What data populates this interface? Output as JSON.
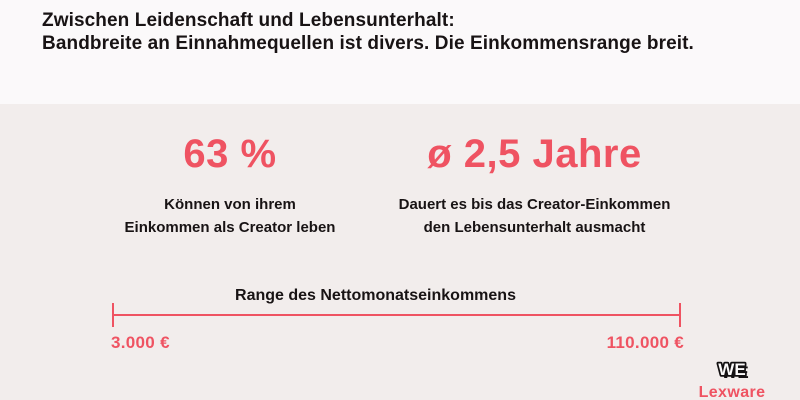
{
  "header": {
    "line1": "Zwischen Leidenschaft und Lebensunterhalt:",
    "line2": "Bandbreite an Einnahmequellen ist divers. Die Einkommensrange breit."
  },
  "stats": [
    {
      "value": "63 %",
      "caption_line1": "Können von ihrem",
      "caption_line2": "Einkommen als Creator leben"
    },
    {
      "value": "ø 2,5 Jahre",
      "caption_line1": "Dauert es bis das Creator-Einkommen",
      "caption_line2": "den Lebensunterhalt ausmacht"
    }
  ],
  "range": {
    "label": "Range des Nettomonatseinkommens",
    "min_label": "3.000 €",
    "max_label": "110.000 €"
  },
  "logo": {
    "top": "WE",
    "bottom": "Lexware"
  },
  "colors": {
    "accent": "#ef5362",
    "text_dark": "#181314",
    "header_bg": "#fbf9fa",
    "body_bg": "#f2edec"
  },
  "chart_data": {
    "type": "table",
    "title": "Zwischen Leidenschaft und Lebensunterhalt: Bandbreite an Einnahmequellen ist divers. Die Einkommensrange breit.",
    "key_figures": [
      {
        "value": 63,
        "unit": "%",
        "label": "Können von ihrem Einkommen als Creator leben"
      },
      {
        "value": 2.5,
        "unit": "Jahre (Durchschnitt, ø)",
        "label": "Dauert es bis das Creator-Einkommen den Lebensunterhalt ausmacht"
      }
    ],
    "range": {
      "label": "Range des Nettomonatseinkommens",
      "min": 3000,
      "max": 110000,
      "unit": "€",
      "min_label": "3.000 €",
      "max_label": "110.000 €"
    },
    "legend_position": "none",
    "grid": false
  }
}
